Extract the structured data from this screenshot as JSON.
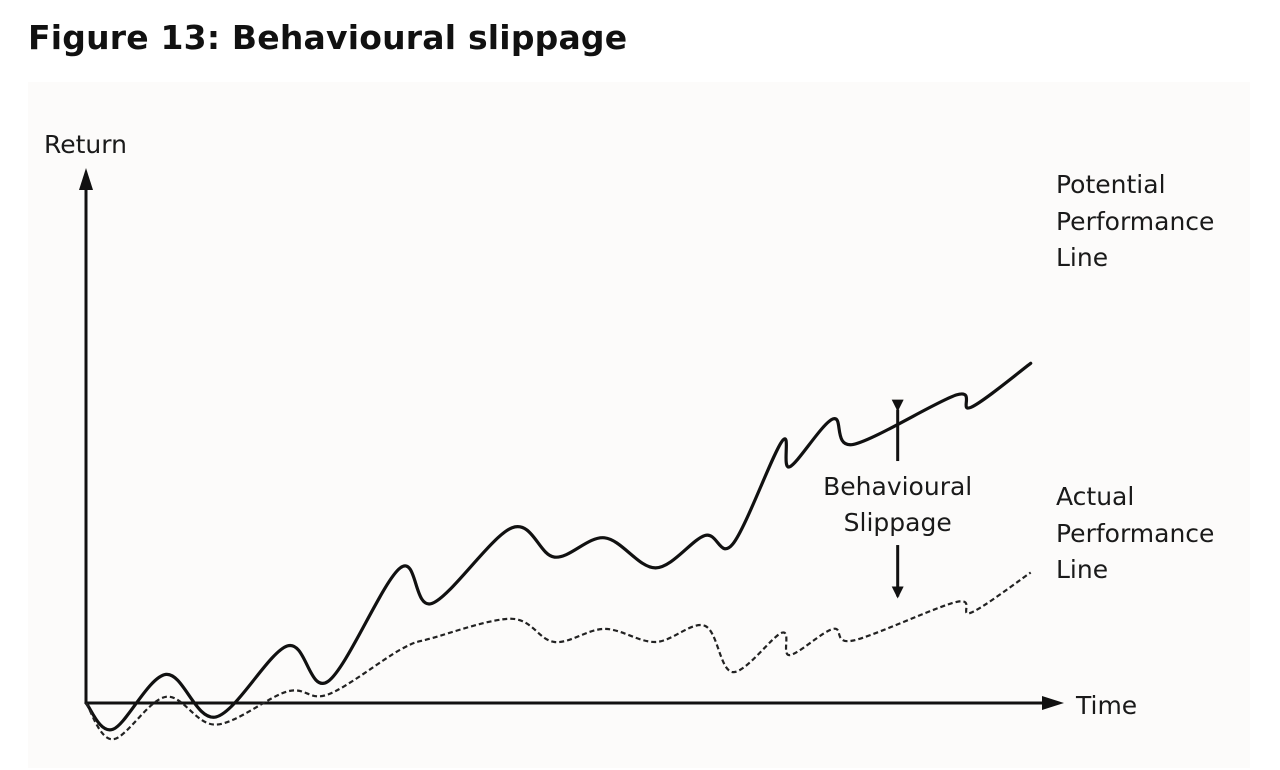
{
  "title": "Figure 13: Behavioural slippage",
  "chart_data": {
    "type": "line",
    "title": "Figure 13: Behavioural slippage",
    "xlabel": "Time",
    "ylabel": "Return",
    "xlim": [
      0,
      100
    ],
    "ylim": [
      -6,
      62
    ],
    "grid": false,
    "ticks": "none",
    "series": [
      {
        "name": "Potential Performance Line",
        "label_lines": [
          "Potential",
          "Performance",
          "Line"
        ],
        "style": "solid",
        "x": [
          0,
          2.8,
          8.3,
          13.5,
          20.9,
          25.1,
          32.6,
          35.9,
          44.2,
          48.6,
          53.8,
          59.1,
          64.2,
          67.1,
          72.2,
          73.0,
          77.5,
          79.6,
          90.3,
          91.8,
          98.0
        ],
        "y": [
          0,
          -3.4,
          3.7,
          -1.8,
          7.4,
          2.8,
          17.5,
          12.9,
          22.7,
          18.9,
          21.4,
          17.5,
          21.7,
          20.6,
          33.9,
          30.6,
          36.8,
          33.5,
          39.9,
          38.3,
          44.0
        ]
      },
      {
        "name": "Actual Performance Line",
        "label_lines": [
          "Actual",
          "Performance",
          "Line"
        ],
        "style": "dashed",
        "x": [
          0,
          2.8,
          8.3,
          13.5,
          20.9,
          25.1,
          32.6,
          35.9,
          44.2,
          48.6,
          53.8,
          59.1,
          64.2,
          67.1,
          72.2,
          73.0,
          77.5,
          79.6,
          90.3,
          91.8,
          98.0
        ],
        "y": [
          0,
          -4.7,
          0.8,
          -2.8,
          1.5,
          1.1,
          6.9,
          8.4,
          10.9,
          7.9,
          9.6,
          7.9,
          10.0,
          4.0,
          9.1,
          6.2,
          9.6,
          8.1,
          13.1,
          11.7,
          16.9
        ]
      }
    ],
    "annotations": [
      {
        "lines": [
          "Behavioural",
          "Slippage"
        ],
        "x": 84.2,
        "y_top": 38.0,
        "y_bottom": 13.8,
        "arrow": "double"
      }
    ]
  }
}
